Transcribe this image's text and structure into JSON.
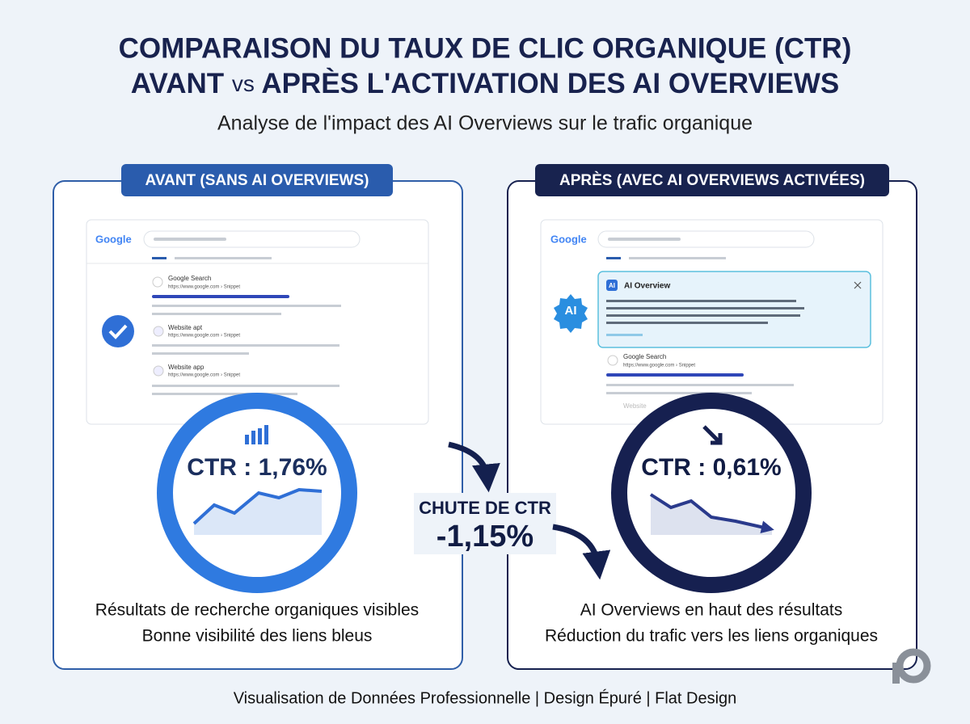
{
  "header": {
    "title_line1": "COMPARAISON DU TAUX DE CLIC ORGANIQUE (CTR)",
    "title_line2_a": "AVANT",
    "title_line2_vs": "vs",
    "title_line2_b": "APRÈS L'ACTIVATION DES AI OVERVIEWS",
    "subtitle": "Analyse de l'impact des AI Overviews sur le trafic organique"
  },
  "before": {
    "label": "AVANT (SANS AI OVERVIEWS)",
    "logo": "Google",
    "results": [
      {
        "title": "Google Search",
        "url": "https://www.google.com › Snippet"
      },
      {
        "title": "Website apt",
        "url": "https://www.google.com › Snippet"
      },
      {
        "title": "Website app",
        "url": "https://www.google.com › Snippet"
      }
    ],
    "ctr": "CTR : 1,76%",
    "caption_line1": "Résultats de recherche organiques visibles",
    "caption_line2": "Bonne visibilité des liens bleus"
  },
  "middle": {
    "label": "CHUTE DE CTR",
    "value": "-1,15%"
  },
  "after": {
    "label": "APRÈS (AVEC AI OVERVIEWS ACTIVÉES)",
    "logo": "Google",
    "ai_badge": "AI",
    "ai_box_icon": "AI",
    "ai_box_title": "AI Overview",
    "results": [
      {
        "title": "Google Search",
        "url": "https://www.google.com › Snippet"
      },
      {
        "title": "Website"
      }
    ],
    "ctr": "CTR : 0,61%",
    "caption_line1": "AI Overviews en haut des résultats",
    "caption_line2": "Réduction du trafic vers les liens organiques"
  },
  "footer": "Visualisation de Données Professionnelle | Design Épuré | Flat Design"
}
